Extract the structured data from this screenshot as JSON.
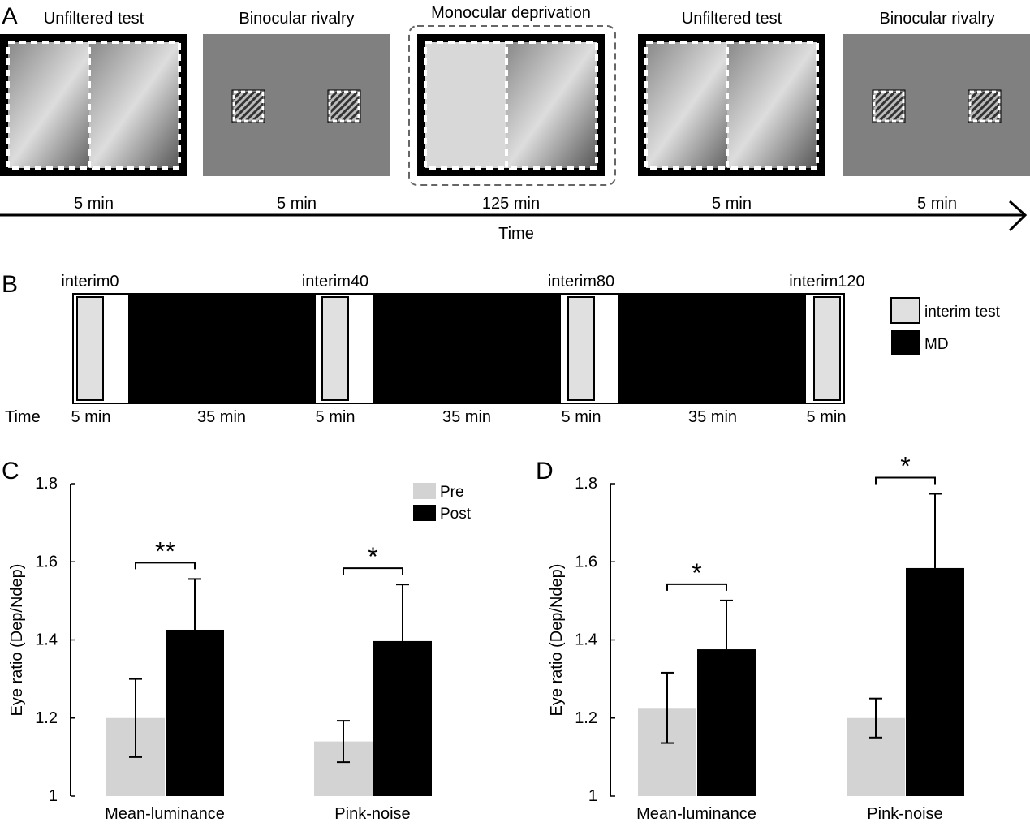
{
  "panels": {
    "a": "A",
    "b": "B",
    "c": "C",
    "d": "D"
  },
  "panel_a": {
    "stages": [
      {
        "title": "Unfiltered test",
        "duration": "5 min",
        "kind": "photo"
      },
      {
        "title": "Binocular rivalry",
        "duration": "5 min",
        "kind": "grating"
      },
      {
        "title": "Monocular deprivation",
        "duration": "125 min",
        "kind": "md"
      },
      {
        "title": "Unfiltered test",
        "duration": "5 min",
        "kind": "photo"
      },
      {
        "title": "Binocular rivalry",
        "duration": "5 min",
        "kind": "grating"
      }
    ],
    "axis_label": "Time"
  },
  "panel_b": {
    "time_label": "Time",
    "interims": [
      "interim0",
      "interim40",
      "interim80",
      "interim120"
    ],
    "durations": [
      "5 min",
      "35 min",
      "5 min",
      "35 min",
      "5 min",
      "35 min",
      "5 min"
    ],
    "legend": {
      "interim": "interim test",
      "md": "MD"
    }
  },
  "chart_data": [
    {
      "type": "bar",
      "panel": "C",
      "ylabel": "Eye ratio (Dep/Ndep)",
      "ylim": [
        1,
        1.8
      ],
      "yticks": [
        "1",
        "1.2",
        "1.4",
        "1.6",
        "1.8"
      ],
      "categories": [
        "Mean-luminance",
        "Pink-noise"
      ],
      "series": [
        {
          "name": "Pre",
          "color": "#d3d3d3",
          "values": [
            1.2,
            1.14
          ],
          "errors": [
            0.1,
            0.053
          ]
        },
        {
          "name": "Post",
          "color": "#000000",
          "values": [
            1.426,
            1.397
          ],
          "errors": [
            0.13,
            0.145
          ]
        }
      ],
      "significance": [
        "**",
        "*"
      ],
      "legend": "top-right"
    },
    {
      "type": "bar",
      "panel": "D",
      "ylabel": "Eye ratio (Dep/Ndep)",
      "ylim": [
        1,
        1.8
      ],
      "yticks": [
        "1",
        "1.2",
        "1.4",
        "1.6",
        "1.8"
      ],
      "categories": [
        "Mean-luminance",
        "Pink-noise"
      ],
      "series": [
        {
          "name": "Pre",
          "color": "#d3d3d3",
          "values": [
            1.226,
            1.2
          ],
          "errors": [
            0.09,
            0.05
          ]
        },
        {
          "name": "Post",
          "color": "#000000",
          "values": [
            1.376,
            1.584
          ],
          "errors": [
            0.125,
            0.19
          ]
        }
      ],
      "significance": [
        "*",
        "*"
      ]
    }
  ]
}
